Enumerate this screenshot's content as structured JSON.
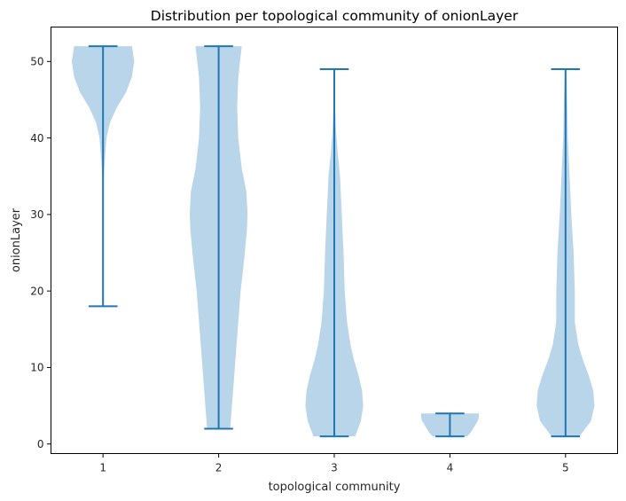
{
  "chart_data": {
    "type": "violin",
    "title": "Distribution per topological community of onionLayer",
    "xlabel": "topological community",
    "ylabel": "onionLayer",
    "xlim": [
      0.55,
      5.45
    ],
    "ylim": [
      -1.25,
      54.5
    ],
    "categories": [
      "1",
      "2",
      "3",
      "4",
      "5"
    ],
    "positions": [
      1,
      2,
      3,
      4,
      5
    ],
    "y_ticks": [
      0,
      10,
      20,
      30,
      40,
      50
    ],
    "y_tick_labels": [
      "0",
      "10",
      "20",
      "30",
      "40",
      "50"
    ],
    "grid": false,
    "colors": {
      "body": "#b9d5ea",
      "line": "#1f77b4",
      "text": "#262626"
    },
    "violins": [
      {
        "category": "1",
        "min": 18,
        "max": 52,
        "profile": [
          [
            18,
            0.0
          ],
          [
            26,
            0.0
          ],
          [
            33,
            0.0
          ],
          [
            36,
            0.01
          ],
          [
            38,
            0.02
          ],
          [
            40,
            0.03
          ],
          [
            42,
            0.06
          ],
          [
            44,
            0.12
          ],
          [
            46,
            0.2
          ],
          [
            48,
            0.25
          ],
          [
            50,
            0.27
          ],
          [
            51,
            0.26
          ],
          [
            52,
            0.25
          ]
        ]
      },
      {
        "category": "2",
        "min": 2,
        "max": 52,
        "profile": [
          [
            2,
            0.1
          ],
          [
            4,
            0.11
          ],
          [
            8,
            0.13
          ],
          [
            12,
            0.15
          ],
          [
            16,
            0.17
          ],
          [
            20,
            0.19
          ],
          [
            24,
            0.22
          ],
          [
            28,
            0.245
          ],
          [
            30,
            0.25
          ],
          [
            33,
            0.24
          ],
          [
            36,
            0.2
          ],
          [
            40,
            0.17
          ],
          [
            44,
            0.16
          ],
          [
            48,
            0.17
          ],
          [
            52,
            0.2
          ]
        ]
      },
      {
        "category": "3",
        "min": 1,
        "max": 49,
        "profile": [
          [
            1,
            0.18
          ],
          [
            3,
            0.23
          ],
          [
            5,
            0.25
          ],
          [
            7,
            0.24
          ],
          [
            9,
            0.21
          ],
          [
            11,
            0.17
          ],
          [
            13,
            0.14
          ],
          [
            16,
            0.11
          ],
          [
            20,
            0.09
          ],
          [
            25,
            0.08
          ],
          [
            30,
            0.065
          ],
          [
            35,
            0.05
          ],
          [
            38,
            0.03
          ],
          [
            41,
            0.015
          ],
          [
            44,
            0.007
          ],
          [
            47,
            0.003
          ],
          [
            49,
            0.0
          ]
        ]
      },
      {
        "category": "4",
        "min": 1,
        "max": 4,
        "profile": [
          [
            1,
            0.15
          ],
          [
            1.5,
            0.18
          ],
          [
            2,
            0.2
          ],
          [
            2.5,
            0.22
          ],
          [
            3,
            0.24
          ],
          [
            3.5,
            0.25
          ],
          [
            4,
            0.25
          ]
        ]
      },
      {
        "category": "5",
        "min": 1,
        "max": 49,
        "profile": [
          [
            1,
            0.12
          ],
          [
            3,
            0.22
          ],
          [
            5,
            0.25
          ],
          [
            7,
            0.24
          ],
          [
            9,
            0.2
          ],
          [
            11,
            0.15
          ],
          [
            13,
            0.11
          ],
          [
            16,
            0.08
          ],
          [
            20,
            0.08
          ],
          [
            25,
            0.07
          ],
          [
            30,
            0.05
          ],
          [
            35,
            0.035
          ],
          [
            40,
            0.02
          ],
          [
            44,
            0.015
          ],
          [
            47,
            0.01
          ],
          [
            49,
            0.005
          ]
        ]
      }
    ]
  }
}
